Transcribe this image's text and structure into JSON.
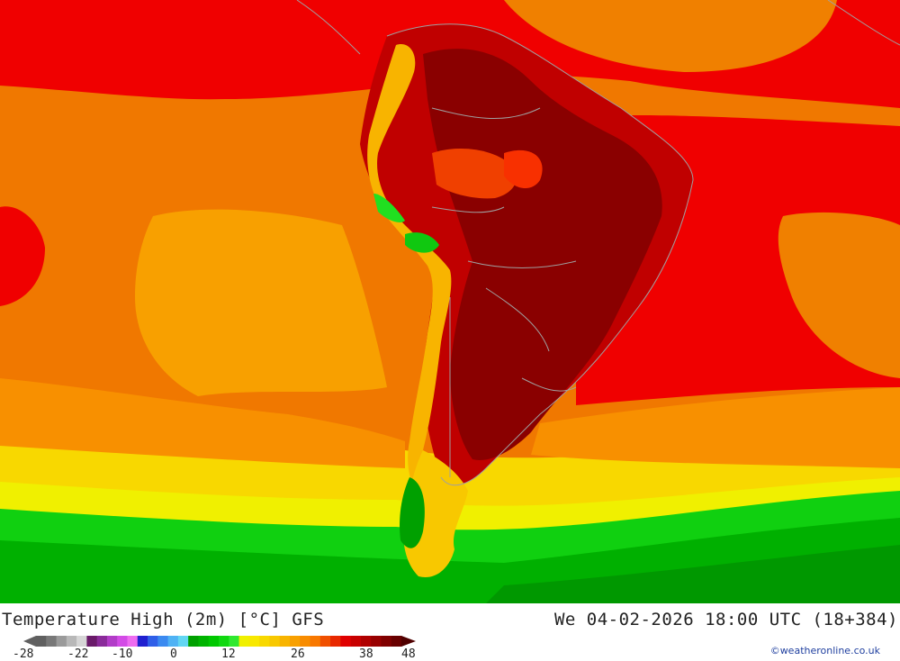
{
  "header": {
    "title": "Temperature High (2m) [°C] GFS",
    "datetime": "We 04-02-2026 18:00 UTC (18+384)"
  },
  "legend": {
    "ticks": [
      "-28",
      "-22",
      "-10",
      "0",
      "12",
      "26",
      "38",
      "48"
    ],
    "colors": [
      "#606060",
      "#787878",
      "#9a9a9a",
      "#b8b8b8",
      "#d6d6d6",
      "#6a1b6a",
      "#8a2b9a",
      "#b23cc8",
      "#d34be6",
      "#ee6cf0",
      "#2020d0",
      "#2f5fe8",
      "#3b8af0",
      "#4fb2f4",
      "#62d6f2",
      "#00a000",
      "#00b400",
      "#00c800",
      "#10d810",
      "#2fe82f",
      "#f0f000",
      "#f8e800",
      "#f8d800",
      "#f8c800",
      "#f8b400",
      "#f8a000",
      "#f88c00",
      "#f87800",
      "#f05000",
      "#e82800",
      "#e00000",
      "#c80000",
      "#b00000",
      "#980000",
      "#800000",
      "#680000"
    ],
    "arrow_left_color": "#606060",
    "arrow_right_color": "#500000"
  },
  "map": {
    "region": "South America",
    "colors": {
      "ocean_warm": "#f08000",
      "ocean_hot": "#ff0000",
      "land_hot": "#900000",
      "cool_band": "#00c800",
      "yellow_band": "#f8e800",
      "borders": "#a0a0a0"
    }
  },
  "credit": "©weatheronline.co.uk"
}
